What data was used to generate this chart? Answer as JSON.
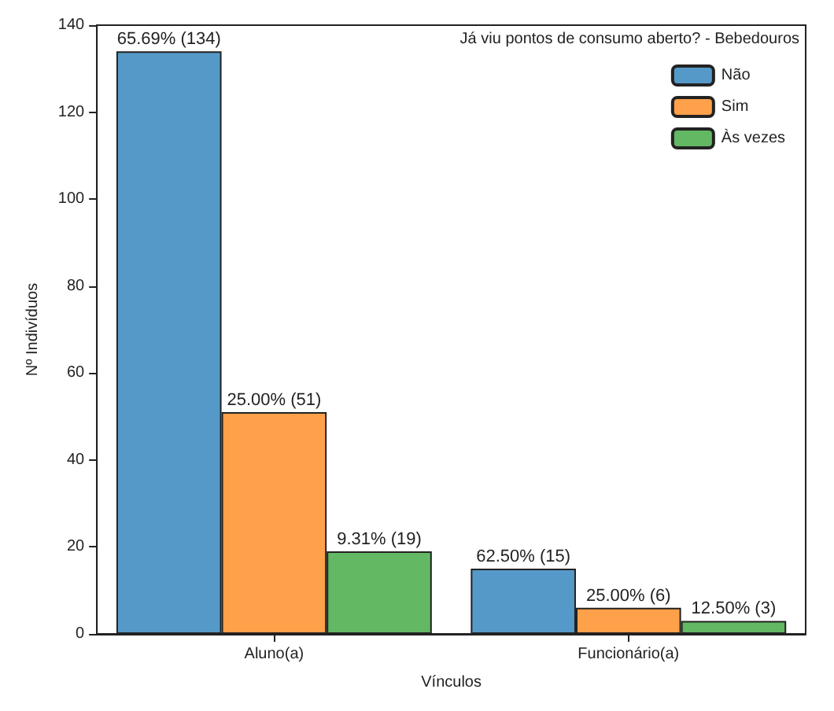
{
  "chart_data": {
    "type": "bar",
    "xlabel": "Vínculos",
    "ylabel": "Nº Indivíduos",
    "legend_title": "Já viu pontos de consumo aberto? - Bebedouros",
    "categories": [
      "Aluno(a)",
      "Funcionário(a)"
    ],
    "series": [
      {
        "name": "Não",
        "color": "#5599c8",
        "values": [
          134,
          15
        ],
        "value_labels": [
          "65.69% (134)",
          "62.50% (15)"
        ]
      },
      {
        "name": "Sim",
        "color": "#ffa04a",
        "values": [
          51,
          6
        ],
        "value_labels": [
          "25.00% (51)",
          "25.00% (6)"
        ]
      },
      {
        "name": "Às vezes",
        "color": "#62b863",
        "values": [
          19,
          3
        ],
        "value_labels": [
          "9.31% (19)",
          "12.50% (3)"
        ]
      }
    ],
    "ylim": [
      0,
      140
    ],
    "yticks": [
      0,
      20,
      40,
      60,
      80,
      100,
      120,
      140
    ],
    "grid": false,
    "legend": "top right"
  }
}
